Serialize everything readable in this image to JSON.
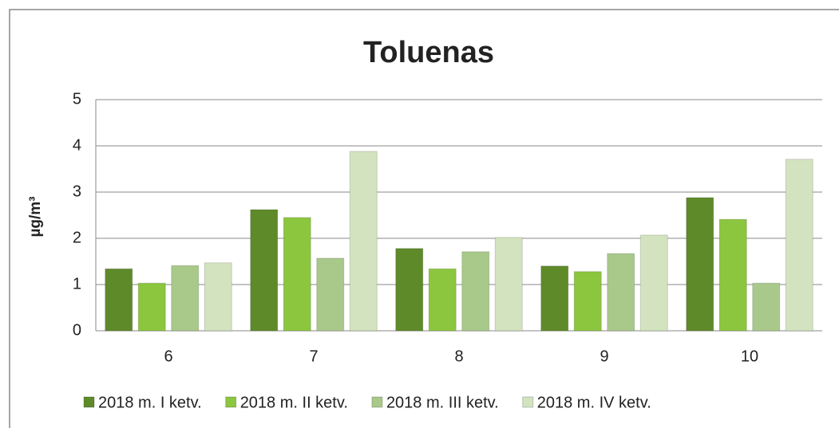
{
  "chart_data": {
    "type": "bar",
    "title": "Toluenas",
    "y_label": "µg/m³",
    "categories": [
      "6",
      "7",
      "8",
      "9",
      "10"
    ],
    "series": [
      {
        "name": "2018 m. I ketv.",
        "color": "#5f8a2a",
        "values": [
          1.34,
          2.62,
          1.78,
          1.4,
          2.88
        ]
      },
      {
        "name": "2018 m. II ketv.",
        "color": "#8cc63f",
        "values": [
          1.03,
          2.45,
          1.34,
          1.28,
          2.41
        ]
      },
      {
        "name": "2018 m. III ketv.",
        "color": "#a9c98a",
        "values": [
          1.41,
          1.57,
          1.71,
          1.67,
          1.03
        ]
      },
      {
        "name": "2018 m. IV ketv.",
        "color": "#d3e3bf",
        "values": [
          1.47,
          3.88,
          2.02,
          2.07,
          3.71
        ]
      }
    ],
    "ylim": [
      0,
      5
    ],
    "yticks": [
      0,
      1,
      2,
      3,
      4,
      5
    ],
    "grid": true,
    "legend": "bottom"
  }
}
